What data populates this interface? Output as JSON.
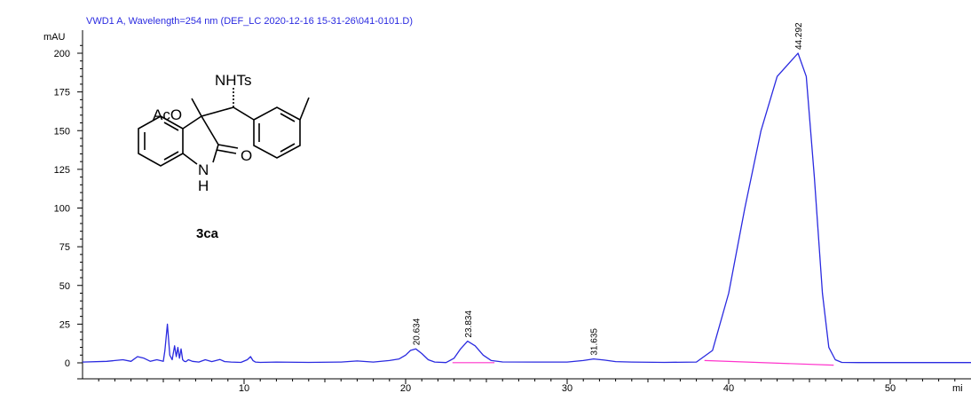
{
  "chart_data": {
    "type": "line",
    "title": "VWD1 A, Wavelength=254 nm (DEF_LC 2020-12-16 15-31-26\\041-0101.D)",
    "ylabel": "mAU",
    "xlabel": "mi",
    "xlim": [
      0,
      55
    ],
    "ylim": [
      -5,
      210
    ],
    "xticks": [
      10,
      20,
      30,
      40,
      50
    ],
    "yticks": [
      0,
      25,
      50,
      75,
      100,
      125,
      150,
      175,
      200
    ],
    "grid": false,
    "colors": {
      "trace": "#2a2ae0",
      "baseline": "#ff33cc",
      "axis": "#000000",
      "title": "#2a2ae0"
    },
    "series": [
      {
        "x": [
          0,
          1.5,
          2.5,
          3,
          3.4,
          3.8,
          4.2,
          4.6,
          5,
          5.1,
          5.25,
          5.4,
          5.55,
          5.7,
          5.8,
          5.9,
          6.0,
          6.1,
          6.2,
          6.3,
          6.4,
          6.55,
          6.8,
          7.2,
          7.6,
          8,
          8.5,
          8.8,
          9.2,
          9.8,
          10.2,
          10.4,
          10.55,
          10.7,
          11,
          12,
          14,
          16,
          17,
          18,
          19,
          19.6,
          20,
          20.3,
          20.634,
          21,
          21.4,
          21.8,
          22.5,
          23,
          23.4,
          23.834,
          24.3,
          24.8,
          25.3,
          26,
          28,
          30,
          31,
          31.635,
          32.3,
          33,
          34,
          36,
          38,
          39,
          40,
          41,
          42,
          43,
          44.292,
          44.8,
          45.3,
          45.8,
          46.2,
          46.6,
          47,
          48,
          50,
          52,
          54,
          55
        ],
        "y": [
          0.5,
          1,
          2,
          1,
          4,
          3,
          1,
          2,
          1,
          8,
          25,
          5,
          2,
          11,
          4,
          10,
          3,
          9,
          2,
          1,
          0.8,
          2,
          1,
          0.5,
          2,
          0.8,
          2.2,
          0.8,
          0.5,
          0.3,
          2,
          4,
          1.5,
          0.5,
          0.3,
          0.5,
          0.3,
          0.5,
          1.2,
          0.5,
          1.5,
          2.5,
          5,
          8,
          9,
          6,
          2,
          0.5,
          0.2,
          3,
          9,
          14,
          11,
          5,
          1.5,
          0.6,
          0.5,
          0.5,
          1.5,
          2.5,
          1.8,
          0.8,
          0.5,
          0.3,
          0.5,
          8,
          45,
          100,
          150,
          185,
          200,
          185,
          120,
          45,
          10,
          2,
          0.3,
          0.2,
          0.2,
          0.2,
          0.2,
          0.2
        ]
      }
    ],
    "baseline_segments": [
      {
        "x": [
          22.9,
          25.5
        ],
        "y": [
          0.1,
          0.1
        ]
      },
      {
        "x": [
          38.5,
          46.5
        ],
        "y": [
          1.5,
          -1.5
        ]
      }
    ],
    "peak_labels": [
      {
        "x": 20.634,
        "y": 9,
        "text": "20.634"
      },
      {
        "x": 23.834,
        "y": 14,
        "text": "23.834"
      },
      {
        "x": 31.635,
        "y": 2.5,
        "text": "31.635"
      },
      {
        "x": 44.292,
        "y": 200,
        "text": "44.292"
      }
    ]
  },
  "molecule": {
    "label_oac": "AcO",
    "label_nhts": "NHTs",
    "label_o": "O",
    "label_n": "N",
    "label_h": "H",
    "compound": "3ca"
  }
}
